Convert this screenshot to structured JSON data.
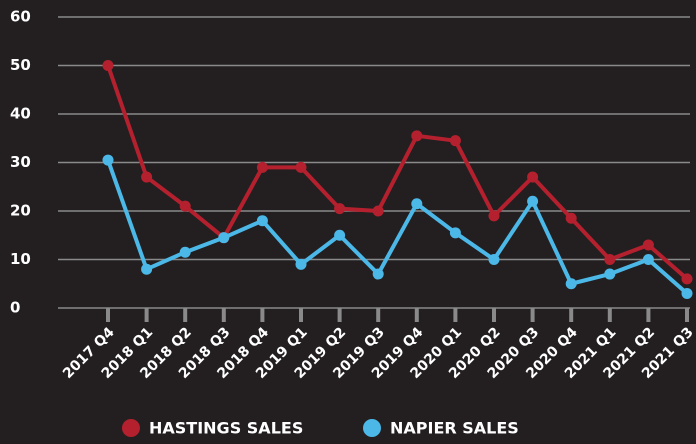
{
  "chart_data": {
    "type": "line",
    "categories": [
      "2017 Q4",
      "2018 Q1",
      "2018 Q2",
      "2018 Q3",
      "2018 Q4",
      "2019 Q1",
      "2019 Q2",
      "2019 Q3",
      "2019 Q4",
      "2020 Q1",
      "2020 Q2",
      "2020 Q3",
      "2020 Q4",
      "2021 Q1",
      "2021 Q2",
      "2021 Q3"
    ],
    "series": [
      {
        "name": "HASTINGS SALES",
        "color": "#b5202e",
        "values": [
          50,
          27,
          21,
          14.5,
          29,
          29,
          20.5,
          20,
          35.5,
          34.5,
          19,
          27,
          18.5,
          10,
          13,
          6
        ]
      },
      {
        "name": "NAPIER SALES",
        "color": "#4bb8e8",
        "values": [
          30.5,
          8,
          11.5,
          14.5,
          18,
          9,
          15,
          7,
          21.5,
          15.5,
          10,
          22,
          5,
          7,
          10,
          3
        ]
      }
    ],
    "ylim": [
      0,
      60
    ],
    "yticks": [
      0,
      10,
      20,
      30,
      40,
      50,
      60
    ],
    "grid": true,
    "legend": "bottom"
  }
}
